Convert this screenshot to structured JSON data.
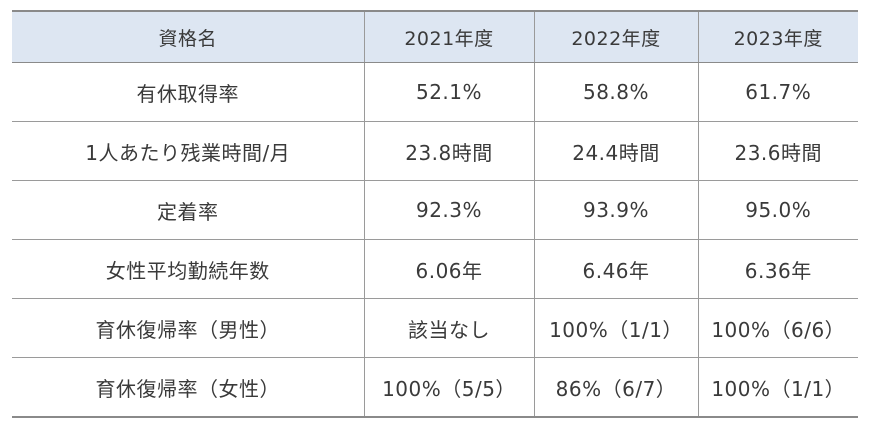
{
  "table": {
    "headers": [
      "資格名",
      "2021年度",
      "2022年度",
      "2023年度"
    ],
    "rows": [
      [
        "有休取得率",
        "52.1%",
        "58.8%",
        "61.7%"
      ],
      [
        "1人あたり残業時間/月",
        "23.8時間",
        "24.4時間",
        "23.6時間"
      ],
      [
        "定着率",
        "92.3%",
        "93.9%",
        "95.0%"
      ],
      [
        "女性平均勤続年数",
        "6.06年",
        "6.46年",
        "6.36年"
      ],
      [
        "育休復帰率（男性）",
        "該当なし",
        "100%（1/1）",
        "100%（6/6）"
      ],
      [
        "育休復帰率（女性）",
        "100%（5/5）",
        "86%（6/7）",
        "100%（1/1）"
      ]
    ]
  },
  "colors": {
    "header_bg": "#dde6f2",
    "border": "#9a9a9a",
    "text": "#3a3a3a"
  }
}
